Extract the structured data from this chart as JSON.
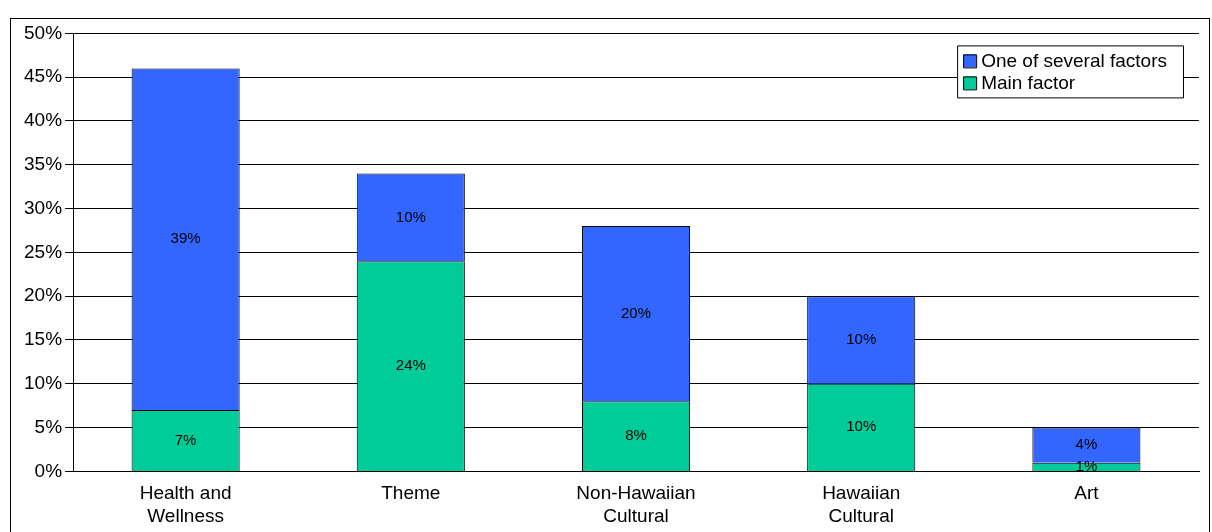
{
  "chart_data": {
    "type": "bar",
    "stacked": true,
    "categories": [
      "Health and Wellness",
      "Theme",
      "Non-Hawaiian Cultural",
      "Hawaiian Cultural",
      "Art"
    ],
    "series": [
      {
        "name": "Main factor",
        "color": "#00cc99",
        "values": [
          7,
          24,
          8,
          10,
          1
        ],
        "value_labels": [
          "7%",
          "24%",
          "8%",
          "10%",
          "1%"
        ]
      },
      {
        "name": "One of several factors",
        "color": "#3366ff",
        "values": [
          39,
          10,
          20,
          10,
          4
        ],
        "value_labels": [
          "39%",
          "10%",
          "20%",
          "10%",
          "4%"
        ]
      }
    ],
    "ylim": [
      0,
      50
    ],
    "yticks": [
      {
        "value": 0,
        "label": "0%"
      },
      {
        "value": 5,
        "label": "5%"
      },
      {
        "value": 10,
        "label": "10%"
      },
      {
        "value": 15,
        "label": "15%"
      },
      {
        "value": 20,
        "label": "20%"
      },
      {
        "value": 25,
        "label": "25%"
      },
      {
        "value": 30,
        "label": "30%"
      },
      {
        "value": 35,
        "label": "35%"
      },
      {
        "value": 40,
        "label": "40%"
      },
      {
        "value": 45,
        "label": "45%"
      },
      {
        "value": 50,
        "label": "50%"
      }
    ],
    "grid": "y",
    "legend": "top right"
  }
}
